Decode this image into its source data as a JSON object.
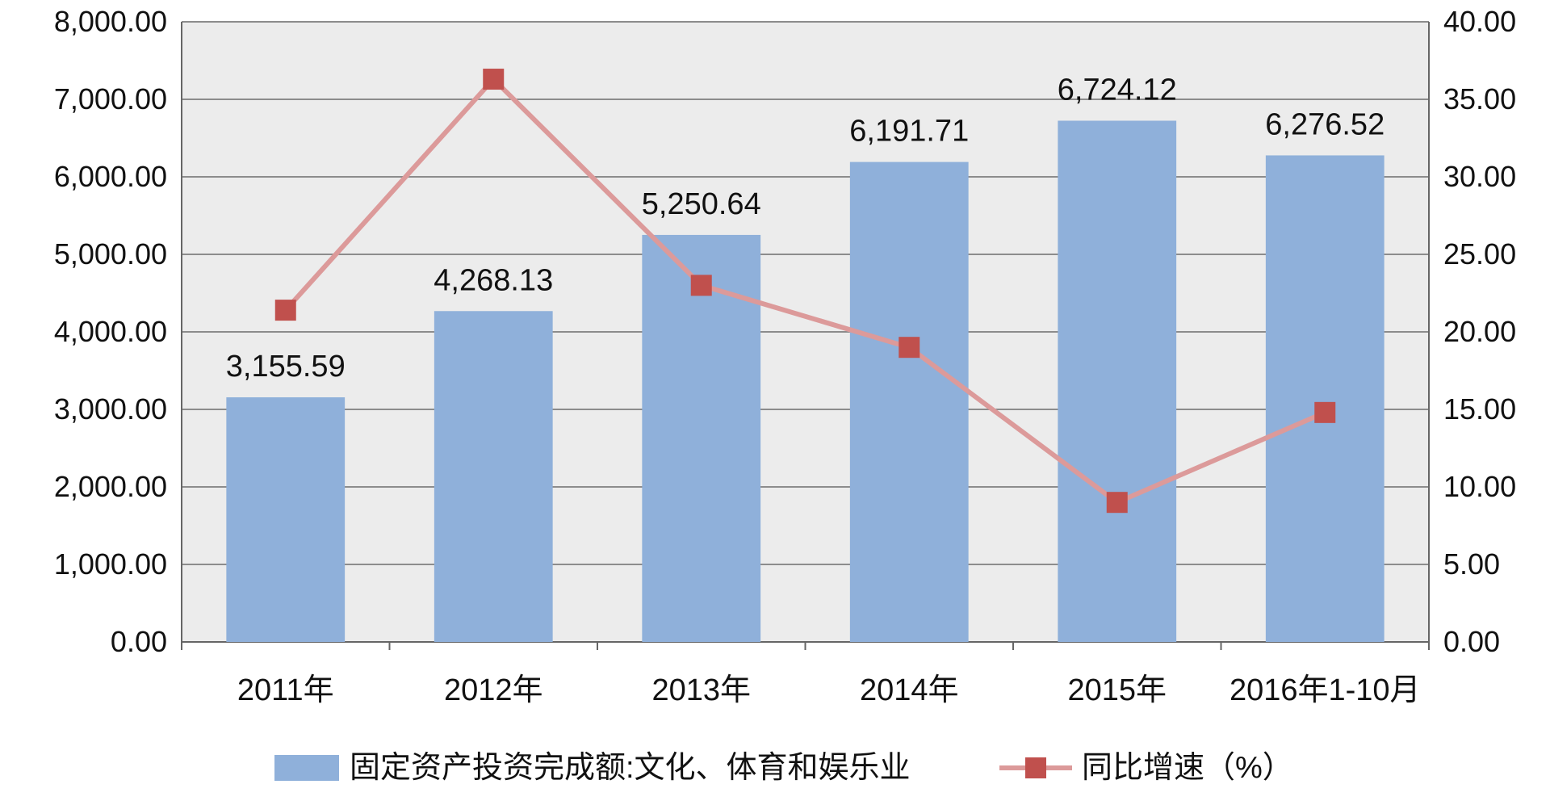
{
  "chart_data": {
    "type": "bar",
    "categories": [
      "2011年",
      "2012年",
      "2013年",
      "2014年",
      "2015年",
      "2016年1-10月"
    ],
    "series": [
      {
        "name": "固定资产投资完成额:文化、体育和娱乐业",
        "type": "bar",
        "axis": "left",
        "values": [
          3155.59,
          4268.13,
          5250.64,
          6191.71,
          6724.12,
          6276.52
        ],
        "data_labels": [
          "3,155.59",
          "4,268.13",
          "5,250.64",
          "6,191.71",
          "6,724.12",
          "6,276.52"
        ]
      },
      {
        "name": "同比增速（%）",
        "type": "line",
        "axis": "right",
        "values": [
          21.4,
          36.3,
          23.0,
          19.0,
          9.0,
          14.8
        ]
      }
    ],
    "ylim_left": [
      0,
      8000
    ],
    "ylim_right": [
      0,
      40
    ],
    "yticks_left": [
      "0.00",
      "1,000.00",
      "2,000.00",
      "3,000.00",
      "4,000.00",
      "5,000.00",
      "6,000.00",
      "7,000.00",
      "8,000.00"
    ],
    "yticks_right": [
      "0.00",
      "5.00",
      "10.00",
      "15.00",
      "20.00",
      "25.00",
      "30.00",
      "35.00",
      "40.00"
    ],
    "grid": true,
    "legend_position": "bottom",
    "colors": {
      "bar": "#8FB0DA",
      "line": "#DC9A9A",
      "marker": "#C0504D",
      "grid": "#8c8c8c",
      "plot_bg": "#ececec"
    }
  }
}
